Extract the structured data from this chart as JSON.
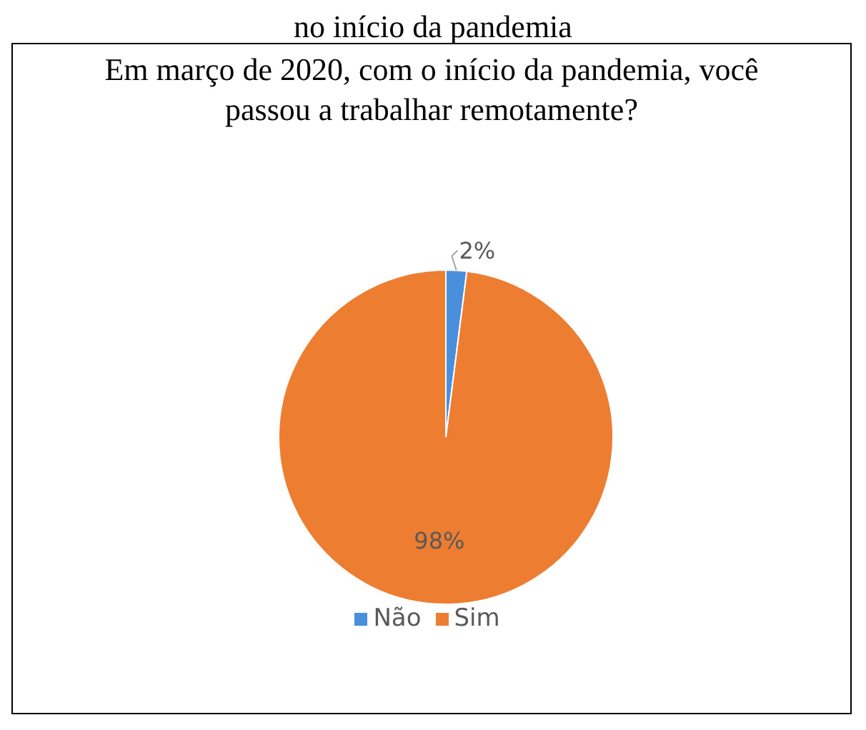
{
  "chart_data": {
    "type": "pie",
    "title": "Em março de 2020, com o início da pandemia, você passou a trabalhar remotamente?",
    "annotations": [
      "no início da pandemia"
    ],
    "categories": [
      "Não",
      "Sim"
    ],
    "values": [
      2,
      98
    ],
    "colors": [
      "#4a8fdb",
      "#ed7d31"
    ],
    "value_labels": [
      "2%",
      "98%"
    ],
    "legend": "bottom"
  }
}
